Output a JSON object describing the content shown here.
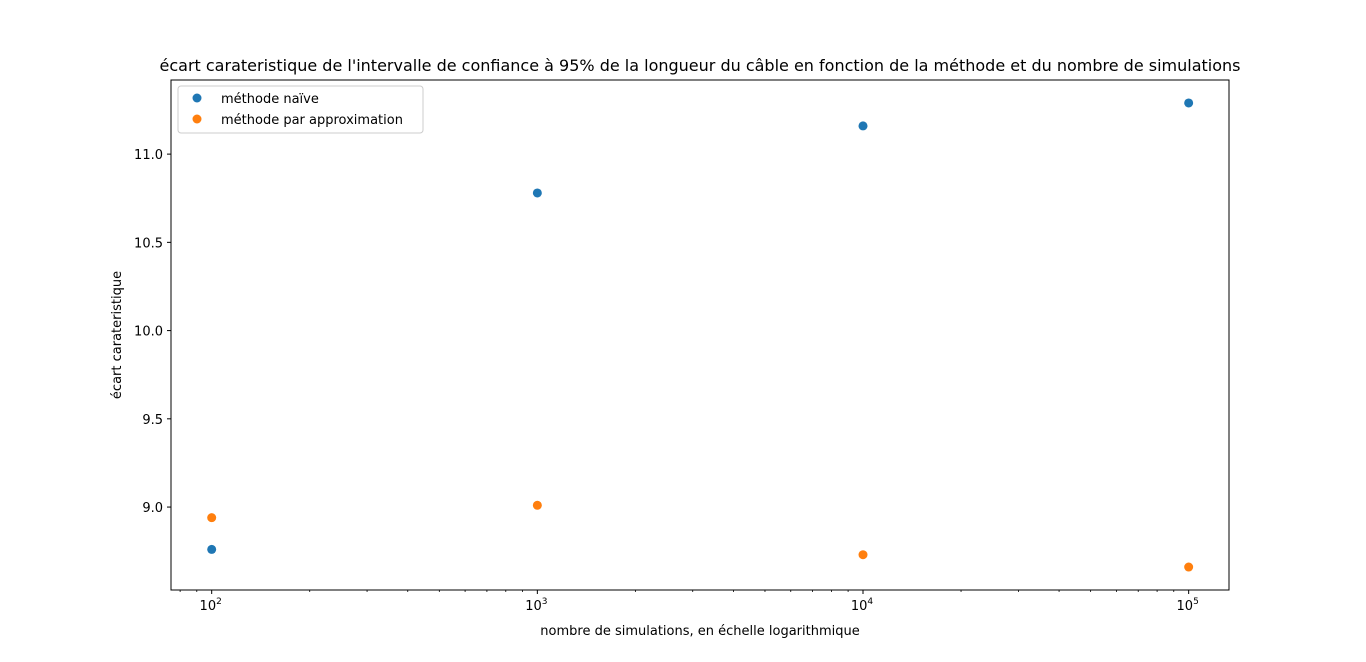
{
  "chart_data": {
    "type": "scatter",
    "title": "écart carateristique de l'intervalle de confiance à 95% de la longueur du câble en fonction de la méthode et du nombre de simulations",
    "xlabel": "nombre de simulations, en échelle logarithmique",
    "ylabel": "écart carateristique",
    "xscale": "log",
    "xlim": [
      75,
      133000
    ],
    "ylim": [
      8.53,
      11.42
    ],
    "x_ticks": [
      {
        "value": 100,
        "base": "10",
        "exp": "2"
      },
      {
        "value": 1000,
        "base": "10",
        "exp": "3"
      },
      {
        "value": 10000,
        "base": "10",
        "exp": "4"
      },
      {
        "value": 100000,
        "base": "10",
        "exp": "5"
      }
    ],
    "y_ticks": [
      {
        "value": 9.0,
        "label": "9.0"
      },
      {
        "value": 9.5,
        "label": "9.5"
      },
      {
        "value": 10.0,
        "label": "10.0"
      },
      {
        "value": 10.5,
        "label": "10.5"
      },
      {
        "value": 11.0,
        "label": "11.0"
      }
    ],
    "grid": false,
    "legend_position": "top-left",
    "series": [
      {
        "name": "méthode naïve",
        "color": "#1f77b4",
        "x": [
          100,
          1000,
          10000,
          100000
        ],
        "y": [
          8.76,
          10.78,
          11.16,
          11.29
        ]
      },
      {
        "name": "méthode par approximation",
        "color": "#ff7f0e",
        "x": [
          100,
          1000,
          10000,
          100000
        ],
        "y": [
          8.94,
          9.01,
          8.73,
          8.66
        ]
      }
    ]
  }
}
